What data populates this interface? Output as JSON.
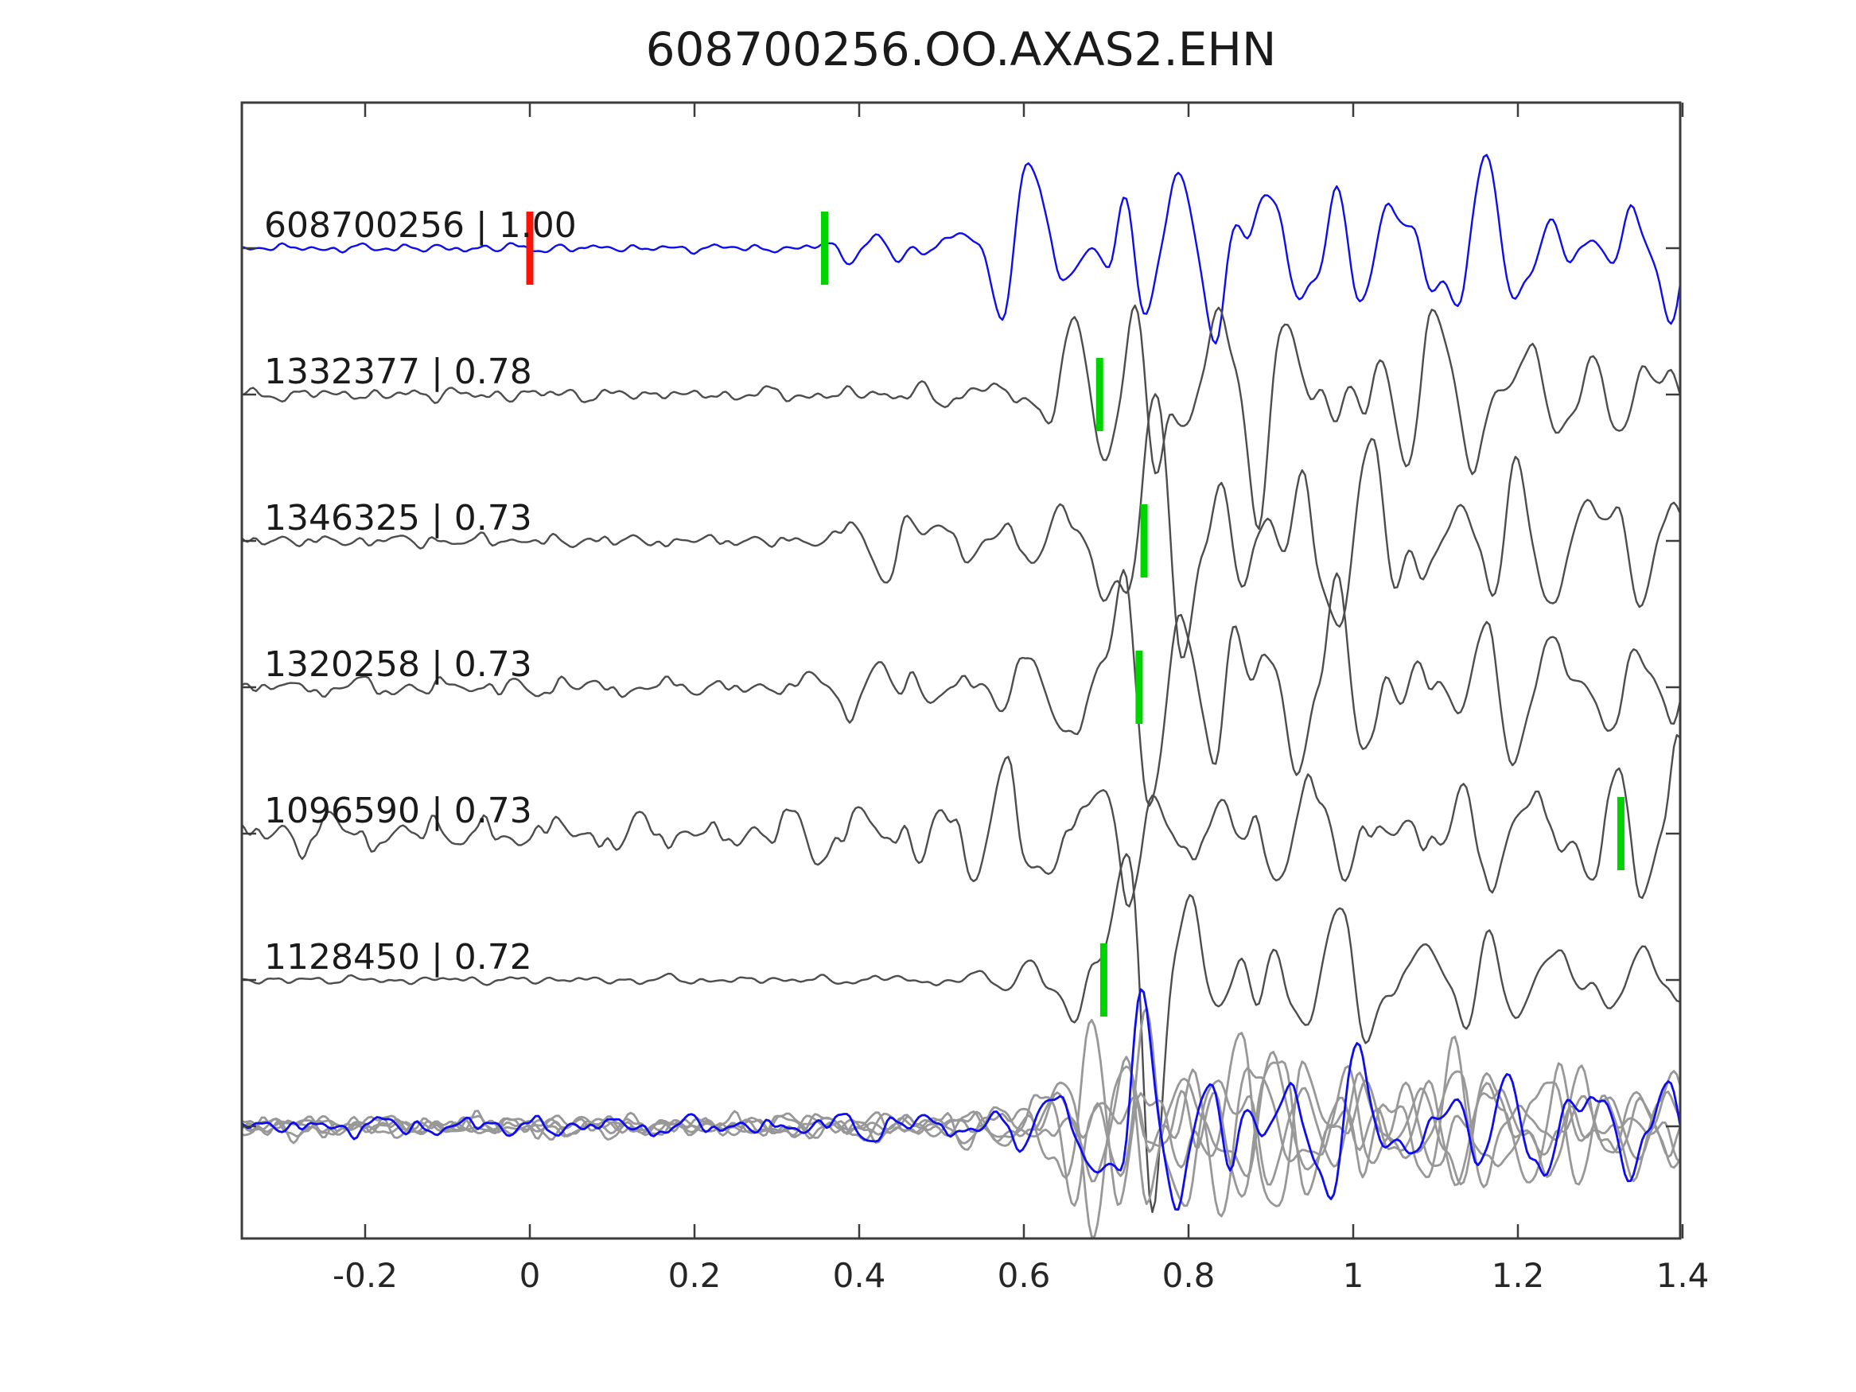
{
  "chart_data": {
    "type": "line",
    "title": "608700256.OO.AXAS2.EHN",
    "xlabel": "",
    "ylabel": "",
    "xlim": [
      -0.35,
      1.405
    ],
    "grid": false,
    "legend": "none",
    "x_ticks": [
      {
        "value": -0.2,
        "label": "-0.2"
      },
      {
        "value": 0,
        "label": "0"
      },
      {
        "value": 0.2,
        "label": "0.2"
      },
      {
        "value": 0.4,
        "label": "0.4"
      },
      {
        "value": 0.6,
        "label": "0.6"
      },
      {
        "value": 0.8,
        "label": "0.8"
      },
      {
        "value": 1,
        "label": "1"
      },
      {
        "value": 1.2,
        "label": "1.2"
      },
      {
        "value": 1.4,
        "label": "1.4"
      }
    ],
    "colors": {
      "template_trace": "#0d0df0",
      "detection_trace": "#4d4d4d",
      "overlay_trace": "#989898",
      "pick_marker": "#00d400",
      "origin_marker": "#fb1407",
      "axis": "#3c3c3c",
      "text": "#1a1a1a",
      "background": "#ffffff"
    },
    "synth_shared": {
      "freqs": [
        7.5,
        11,
        16,
        23,
        31
      ],
      "weights": [
        0.5,
        1.0,
        0.65,
        0.3,
        0.15
      ],
      "norm": 1.45,
      "floor_freqs": [
        21,
        33,
        47,
        61
      ],
      "floor_weights": [
        1.0,
        0.7,
        0.45,
        0.25
      ],
      "floor_norm": 1.35,
      "dt": 0.0035
    },
    "traces": [
      {
        "id": "608700256",
        "cc": "1.00",
        "label": "608700256 | 1.00",
        "color": "#0d0df0",
        "row": 0,
        "markers": [
          {
            "time": 0.0,
            "color": "#fb1407",
            "kind": "origin"
          },
          {
            "time": 0.358,
            "color": "#00d400",
            "kind": "pick"
          }
        ],
        "synth": {
          "seed": 11,
          "floor": 3.5,
          "env": [
            [
              -0.35,
              2
            ],
            [
              0.34,
              2
            ],
            [
              0.38,
              16
            ],
            [
              0.46,
              20
            ],
            [
              0.54,
              28
            ],
            [
              0.58,
              60
            ],
            [
              0.62,
              115
            ],
            [
              0.68,
              85
            ],
            [
              0.73,
              110
            ],
            [
              0.8,
              75
            ],
            [
              0.88,
              90
            ],
            [
              0.97,
              70
            ],
            [
              1.05,
              75
            ],
            [
              1.12,
              95
            ],
            [
              1.2,
              60
            ],
            [
              1.3,
              55
            ],
            [
              1.41,
              70
            ]
          ]
        }
      },
      {
        "id": "1332377",
        "cc": "0.78",
        "label": "1332377 | 0.78",
        "color": "#4d4d4d",
        "row": 1,
        "markers": [
          {
            "time": 0.692,
            "color": "#00d400",
            "kind": "pick"
          }
        ],
        "synth": {
          "seed": 23,
          "floor": 5,
          "env": [
            [
              -0.35,
              3
            ],
            [
              0.3,
              4
            ],
            [
              0.42,
              8
            ],
            [
              0.55,
              11
            ],
            [
              0.62,
              22
            ],
            [
              0.66,
              90
            ],
            [
              0.71,
              125
            ],
            [
              0.77,
              140
            ],
            [
              0.86,
              95
            ],
            [
              0.96,
              95
            ],
            [
              1.06,
              85
            ],
            [
              1.16,
              80
            ],
            [
              1.26,
              55
            ],
            [
              1.41,
              42
            ]
          ]
        }
      },
      {
        "id": "1346325",
        "cc": "0.73",
        "label": "1346325 | 0.73",
        "color": "#4d4d4d",
        "row": 2,
        "markers": [
          {
            "time": 0.746,
            "color": "#00d400",
            "kind": "pick"
          }
        ],
        "synth": {
          "seed": 37,
          "floor": 5,
          "env": [
            [
              -0.35,
              3
            ],
            [
              0.36,
              3
            ],
            [
              0.41,
              34
            ],
            [
              0.47,
              40
            ],
            [
              0.53,
              26
            ],
            [
              0.6,
              26
            ],
            [
              0.66,
              45
            ],
            [
              0.71,
              115
            ],
            [
              0.78,
              140
            ],
            [
              0.87,
              95
            ],
            [
              0.97,
              90
            ],
            [
              1.07,
              88
            ],
            [
              1.17,
              90
            ],
            [
              1.27,
              70
            ],
            [
              1.41,
              52
            ]
          ]
        }
      },
      {
        "id": "1320258",
        "cc": "0.73",
        "label": "1320258 | 0.73",
        "color": "#4d4d4d",
        "row": 3,
        "markers": [
          {
            "time": 0.74,
            "color": "#00d400",
            "kind": "pick"
          }
        ],
        "synth": {
          "seed": 41,
          "floor": 6,
          "env": [
            [
              -0.35,
              16
            ],
            [
              -0.29,
              18
            ],
            [
              -0.24,
              7
            ],
            [
              0.3,
              7
            ],
            [
              0.38,
              24
            ],
            [
              0.46,
              30
            ],
            [
              0.54,
              24
            ],
            [
              0.61,
              30
            ],
            [
              0.66,
              85
            ],
            [
              0.71,
              120
            ],
            [
              0.79,
              140
            ],
            [
              0.89,
              92
            ],
            [
              1.0,
              85
            ],
            [
              1.1,
              80
            ],
            [
              1.2,
              70
            ],
            [
              1.3,
              55
            ],
            [
              1.41,
              50
            ]
          ]
        }
      },
      {
        "id": "1096590",
        "cc": "0.73",
        "label": "1096590 | 0.73",
        "color": "#4d4d4d",
        "row": 4,
        "markers": [
          {
            "time": 1.325,
            "color": "#00d400",
            "kind": "pick"
          }
        ],
        "synth": {
          "seed": 53,
          "floor": 9,
          "env": [
            [
              -0.35,
              18
            ],
            [
              -0.2,
              15
            ],
            [
              0.0,
              14
            ],
            [
              0.15,
              16
            ],
            [
              0.3,
              20
            ],
            [
              0.42,
              32
            ],
            [
              0.5,
              58
            ],
            [
              0.57,
              70
            ],
            [
              0.64,
              60
            ],
            [
              0.71,
              66
            ],
            [
              0.79,
              55
            ],
            [
              0.89,
              46
            ],
            [
              0.99,
              52
            ],
            [
              1.09,
              56
            ],
            [
              1.19,
              46
            ],
            [
              1.27,
              58
            ],
            [
              1.33,
              75
            ],
            [
              1.37,
              145
            ],
            [
              1.41,
              115
            ]
          ]
        }
      },
      {
        "id": "1128450",
        "cc": "0.72",
        "label": "1128450 | 0.72",
        "color": "#4d4d4d",
        "row": 5,
        "markers": [
          {
            "time": 0.697,
            "color": "#00d400",
            "kind": "pick"
          }
        ],
        "synth": {
          "seed": 67,
          "floor": 3,
          "env": [
            [
              -0.35,
              2
            ],
            [
              0.4,
              3
            ],
            [
              0.5,
              6
            ],
            [
              0.58,
              12
            ],
            [
              0.64,
              45
            ],
            [
              0.69,
              120
            ],
            [
              0.75,
              185
            ],
            [
              0.82,
              95
            ],
            [
              0.92,
              72
            ],
            [
              1.02,
              62
            ],
            [
              1.12,
              70
            ],
            [
              1.22,
              45
            ],
            [
              1.32,
              30
            ],
            [
              1.41,
              28
            ]
          ]
        }
      }
    ],
    "overlay": {
      "row": 6,
      "env": [
        [
          -0.35,
          7
        ],
        [
          0.3,
          8
        ],
        [
          0.4,
          12
        ],
        [
          0.55,
          15
        ],
        [
          0.62,
          30
        ],
        [
          0.67,
          80
        ],
        [
          0.74,
          115
        ],
        [
          0.82,
          82
        ],
        [
          0.92,
          70
        ],
        [
          1.02,
          66
        ],
        [
          1.12,
          60
        ],
        [
          1.22,
          56
        ],
        [
          1.32,
          50
        ],
        [
          1.41,
          56
        ]
      ],
      "floor": 6,
      "members": [
        {
          "seed": 301,
          "scale": 1.0,
          "color": "#989898"
        },
        {
          "seed": 302,
          "scale": 0.9,
          "color": "#989898"
        },
        {
          "seed": 303,
          "scale": 1.15,
          "color": "#989898"
        },
        {
          "seed": 304,
          "scale": 0.85,
          "color": "#989898"
        },
        {
          "seed": 305,
          "scale": 0.95,
          "color": "#989898"
        },
        {
          "seed": 306,
          "scale": 1.0,
          "color": "#0d0df0"
        }
      ]
    }
  }
}
